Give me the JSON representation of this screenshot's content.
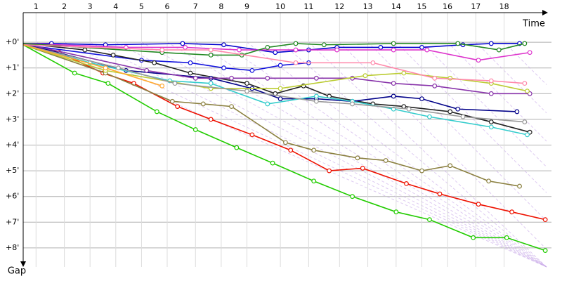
{
  "chart_data": {
    "type": "line",
    "x_label": "Time",
    "y_label": "Gap",
    "xlim": [
      0,
      20.35
    ],
    "ylim": [
      -1.15,
      8.74
    ],
    "xticks": [
      {
        "value": 0.5,
        "label": "1"
      },
      {
        "value": 1.6,
        "label": "2"
      },
      {
        "value": 2.6,
        "label": "3"
      },
      {
        "value": 3.6,
        "label": "4"
      },
      {
        "value": 4.6,
        "label": "5"
      },
      {
        "value": 5.6,
        "label": "6"
      },
      {
        "value": 6.7,
        "label": "7"
      },
      {
        "value": 7.7,
        "label": "8"
      },
      {
        "value": 8.7,
        "label": "9"
      },
      {
        "value": 10.0,
        "label": "10"
      },
      {
        "value": 11.1,
        "label": "11"
      },
      {
        "value": 12.3,
        "label": "12"
      },
      {
        "value": 13.4,
        "label": "13"
      },
      {
        "value": 14.5,
        "label": "14"
      },
      {
        "value": 15.5,
        "label": "15"
      },
      {
        "value": 16.5,
        "label": "16"
      },
      {
        "value": 17.6,
        "label": "17"
      },
      {
        "value": 18.7,
        "label": "18"
      }
    ],
    "yticks": [
      {
        "value": 0,
        "label": "+0'"
      },
      {
        "value": 1,
        "label": "+1'"
      },
      {
        "value": 2,
        "label": "+2'"
      },
      {
        "value": 3,
        "label": "+3'"
      },
      {
        "value": 4,
        "label": "+4'"
      },
      {
        "value": 5,
        "label": "+5'"
      },
      {
        "value": 6,
        "label": "+6'"
      },
      {
        "value": 7,
        "label": "+7'"
      },
      {
        "value": 8,
        "label": "+8'"
      }
    ],
    "grid": true,
    "series": [
      {
        "color": "#22cc00",
        "x": [
          0,
          2.0,
          3.3,
          5.2,
          6.7,
          8.3,
          9.7,
          11.3,
          12.8,
          14.5,
          15.8,
          17.5,
          18.8,
          20.3
        ],
        "values": [
          0.1,
          1.2,
          1.6,
          2.7,
          3.4,
          4.1,
          4.7,
          5.4,
          6.0,
          6.6,
          6.9,
          7.6,
          7.6,
          8.1
        ]
      },
      {
        "color": "#ee1100",
        "x": [
          0,
          1.4,
          3.1,
          4.3,
          6.0,
          7.3,
          8.9,
          10.4,
          11.9,
          13.2,
          14.9,
          16.2,
          17.7,
          19.0,
          20.3
        ],
        "values": [
          0.1,
          0.4,
          1.2,
          1.6,
          2.5,
          3.0,
          3.6,
          4.2,
          5.0,
          4.9,
          5.5,
          5.9,
          6.3,
          6.6,
          6.9
        ]
      },
      {
        "color": "#8b8040",
        "x": [
          0,
          3.2,
          5.8,
          7.0,
          8.1,
          10.2,
          11.3,
          13.0,
          14.1,
          15.5,
          16.6,
          18.1,
          19.3
        ],
        "values": [
          0.1,
          1.2,
          2.3,
          2.4,
          2.5,
          3.9,
          4.2,
          4.5,
          4.6,
          5.0,
          4.8,
          5.4,
          5.6
        ]
      },
      {
        "color": "#0000cc",
        "x": [
          0,
          1.1,
          3.2,
          6.2,
          7.8,
          9.8,
          11.1,
          12.2,
          13.9,
          15.5,
          17.1,
          18.2,
          19.3
        ],
        "values": [
          0.05,
          0.05,
          0.1,
          0.05,
          0.1,
          0.4,
          0.3,
          0.2,
          0.2,
          0.2,
          0.1,
          0.05,
          0.05
        ]
      },
      {
        "color": "#1111dd",
        "x": [
          0,
          4.6,
          6.5,
          7.8,
          8.9,
          10.0,
          11.1
        ],
        "values": [
          0.1,
          0.7,
          0.8,
          1.0,
          1.1,
          0.9,
          0.8
        ]
      },
      {
        "color": "#222222",
        "x": [
          0,
          2.4,
          3.5,
          5.1,
          6.5,
          8.7,
          9.8,
          10.9,
          11.9,
          13.6,
          14.8,
          16.6,
          18.2,
          19.7
        ],
        "values": [
          0.05,
          0.3,
          0.5,
          0.8,
          1.2,
          1.6,
          2.0,
          1.7,
          2.1,
          2.4,
          2.5,
          2.7,
          3.1,
          3.5
        ]
      },
      {
        "color": "#000088",
        "x": [
          0,
          4.0,
          7.3,
          8.9,
          10.0,
          11.4,
          12.8,
          14.4,
          15.5,
          16.9,
          19.2
        ],
        "values": [
          0.05,
          1.1,
          1.4,
          1.8,
          2.2,
          2.2,
          2.3,
          2.1,
          2.2,
          2.6,
          2.7
        ]
      },
      {
        "color": "#33cccc",
        "x": [
          0,
          2.6,
          5.7,
          7.3,
          9.5,
          11.4,
          12.8,
          14.4,
          15.8,
          18.2,
          19.6
        ],
        "values": [
          0.1,
          0.8,
          1.5,
          1.6,
          2.4,
          2.1,
          2.3,
          2.6,
          2.9,
          3.3,
          3.6
        ]
      },
      {
        "color": "#dd33cc",
        "x": [
          0,
          4.0,
          6.3,
          8.4,
          10.6,
          12.2,
          14.4,
          15.7,
          17.7,
          19.7
        ],
        "values": [
          0.05,
          0.2,
          0.2,
          0.3,
          0.3,
          0.3,
          0.3,
          0.3,
          0.7,
          0.4
        ]
      },
      {
        "color": "#8833aa",
        "x": [
          0,
          4.8,
          6.7,
          8.1,
          9.5,
          11.4,
          12.8,
          14.4,
          16.0,
          18.2,
          19.7
        ],
        "values": [
          0.05,
          1.1,
          1.4,
          1.4,
          1.4,
          1.4,
          1.4,
          1.6,
          1.7,
          2.0,
          2.0
        ]
      },
      {
        "color": "#bbcc33",
        "x": [
          0,
          3.2,
          7.3,
          10.0,
          13.3,
          14.8,
          16.6,
          18.2,
          19.6
        ],
        "values": [
          0.1,
          1.1,
          1.8,
          1.8,
          1.3,
          1.2,
          1.4,
          1.6,
          1.9
        ]
      },
      {
        "color": "#999999",
        "x": [
          0,
          3.7,
          5.9,
          8.7,
          11.4,
          12.8,
          15.0,
          17.1,
          19.5
        ],
        "values": [
          0.1,
          1.0,
          1.6,
          1.9,
          2.3,
          2.4,
          2.6,
          2.9,
          3.1
        ]
      },
      {
        "color": "#228822",
        "x": [
          0,
          5.4,
          7.3,
          8.5,
          9.5,
          10.6,
          11.7,
          14.4,
          16.9,
          18.5,
          19.5
        ],
        "values": [
          0.05,
          0.4,
          0.5,
          0.5,
          0.2,
          0.05,
          0.1,
          0.05,
          0.05,
          0.3,
          0.05
        ]
      },
      {
        "color": "#ff88aa",
        "x": [
          0,
          5.4,
          7.3,
          10.6,
          13.6,
          16.0,
          18.2,
          19.5
        ],
        "values": [
          0.1,
          0.3,
          0.3,
          0.8,
          0.8,
          1.4,
          1.5,
          1.6
        ]
      },
      {
        "color": "#ffaa33",
        "x": [
          0,
          3.2,
          5.4
        ],
        "values": [
          0.1,
          1.0,
          1.7
        ]
      }
    ]
  }
}
